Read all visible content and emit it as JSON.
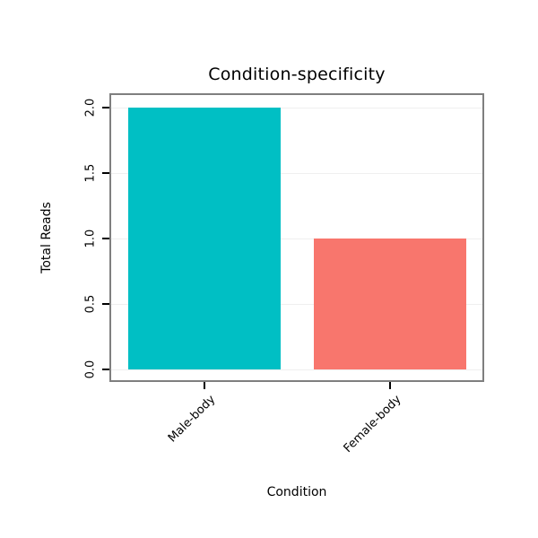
{
  "chart_data": {
    "type": "bar",
    "title": "Condition-specificity",
    "xlabel": "Condition",
    "ylabel": "Total Reads",
    "categories": [
      "Male-body",
      "Female-body"
    ],
    "values": [
      2,
      1
    ],
    "series_colors": [
      "#00BFC4",
      "#F8766D"
    ],
    "ytick_labels": [
      "0.0",
      "0.5",
      "1.0",
      "1.5",
      "2.0"
    ],
    "ytick_values": [
      0,
      0.5,
      1,
      1.5,
      2
    ],
    "ylim": [
      0,
      2.1
    ],
    "grid": true,
    "legend": "none",
    "panel_border_color": "#7F7F7F",
    "grid_color": "#EFEFEF",
    "tick_color": "#000000",
    "background": "#FFFFFF"
  }
}
